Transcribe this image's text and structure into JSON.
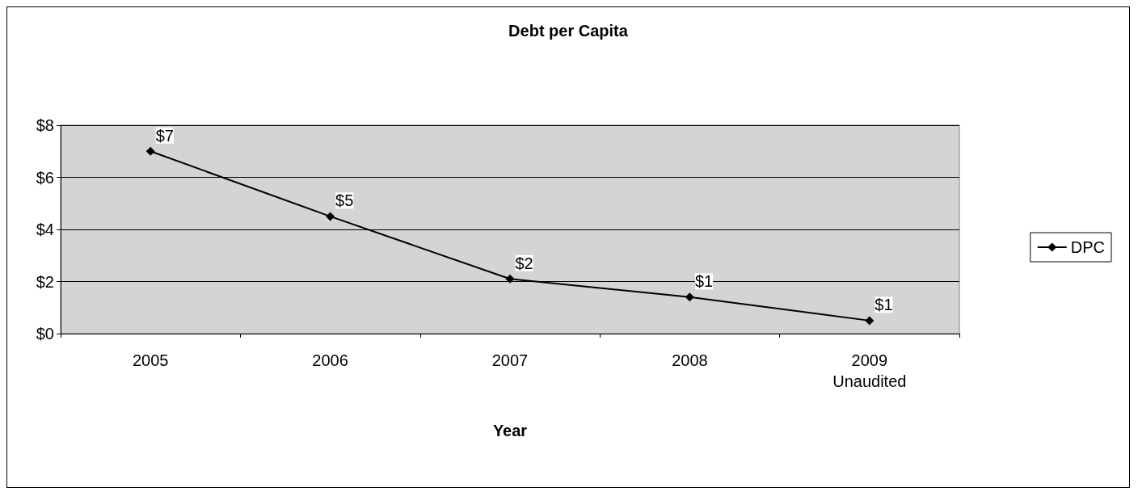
{
  "chart_data": {
    "type": "line",
    "title": "Debt per Capita",
    "xlabel": "Year",
    "categories": [
      "2005",
      "2006",
      "2007",
      "2008",
      "2009\nUnaudited"
    ],
    "series": [
      {
        "name": "DPC",
        "color": "#000000",
        "values": [
          7.0,
          4.5,
          2.1,
          1.4,
          0.5
        ],
        "value_labels": [
          "$7",
          "$5",
          "$2",
          "$1",
          "$1"
        ]
      }
    ],
    "ylim": [
      0,
      8
    ],
    "yticks": [
      {
        "value": 0,
        "label": "$0"
      },
      {
        "value": 2,
        "label": "$2"
      },
      {
        "value": 4,
        "label": "$4"
      },
      {
        "value": 6,
        "label": "$6"
      },
      {
        "value": 8,
        "label": "$8"
      }
    ],
    "grid": "y",
    "legend": "right",
    "marker": "diamond",
    "line_style": "solid"
  }
}
